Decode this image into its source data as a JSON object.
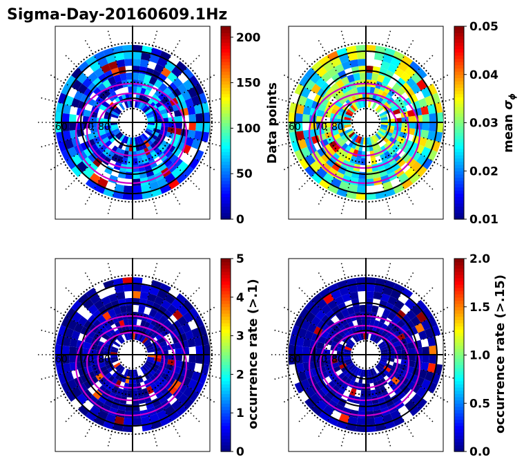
{
  "figure": {
    "title": "Sigma-Day-20160609.1Hz"
  },
  "chart_data": [
    {
      "type": "heatmap",
      "projection": "polar",
      "radial_ring_labels": [
        "60",
        "70",
        "80"
      ],
      "colorbar": {
        "label": "Data points",
        "range": [
          0,
          212
        ],
        "ticks": [
          "0",
          "50",
          "100",
          "150",
          "200"
        ],
        "tick_values": [
          0,
          50,
          100,
          150,
          200
        ],
        "colormap": "jet"
      },
      "dominant_level": 0.18,
      "spread": 0.22
    },
    {
      "type": "heatmap",
      "projection": "polar",
      "radial_ring_labels": [
        "60",
        "70",
        "80"
      ],
      "colorbar": {
        "label": "mean σ_ϕ",
        "label_main": "mean ",
        "label_symbol": "σ",
        "label_sub": "ϕ",
        "range": [
          0.01,
          0.05
        ],
        "ticks": [
          "0.01",
          "0.02",
          "0.03",
          "0.04",
          "0.05"
        ],
        "tick_values": [
          0.01,
          0.02,
          0.03,
          0.04,
          0.05
        ],
        "colormap": "jet"
      },
      "dominant_level": 0.45,
      "spread": 0.25
    },
    {
      "type": "heatmap",
      "projection": "polar",
      "radial_ring_labels": [
        "60",
        "70",
        "80"
      ],
      "colorbar": {
        "label": "occurrence rate (>.1)",
        "range": [
          0,
          5
        ],
        "ticks": [
          "0",
          "1",
          "2",
          "3",
          "4",
          "5"
        ],
        "tick_values": [
          0,
          1,
          2,
          3,
          4,
          5
        ],
        "colormap": "jet"
      },
      "dominant_level": 0.04,
      "spread": 0.06
    },
    {
      "type": "heatmap",
      "projection": "polar",
      "radial_ring_labels": [
        "60",
        "70",
        "80"
      ],
      "colorbar": {
        "label": "occurrence rate (>.15)",
        "range": [
          0,
          2
        ],
        "ticks": [
          "0.0",
          "0.5",
          "1.0",
          "1.5",
          "2.0"
        ],
        "tick_values": [
          0,
          0.5,
          1.0,
          1.5,
          2.0
        ],
        "colormap": "jet"
      },
      "dominant_level": 0.04,
      "spread": 0.05
    }
  ],
  "colors": {
    "overlay_contour": "#cc00cc",
    "grid": "#000000"
  }
}
